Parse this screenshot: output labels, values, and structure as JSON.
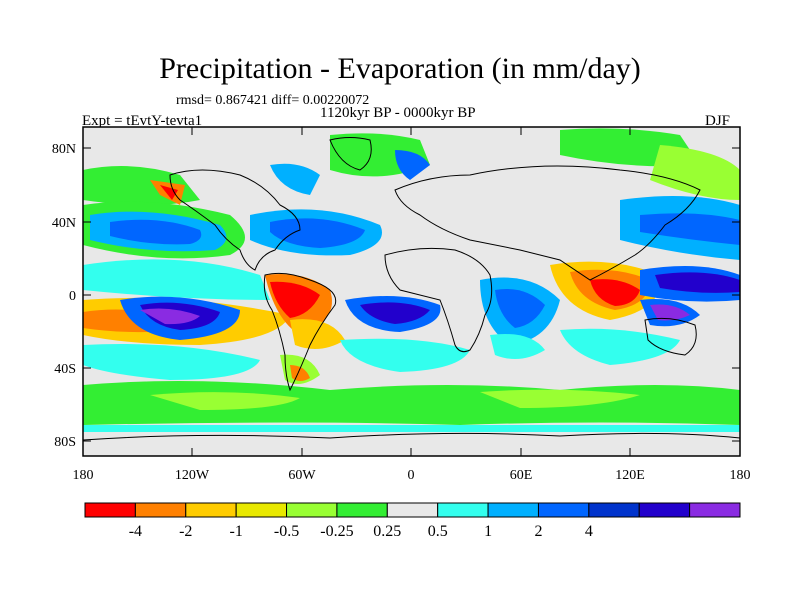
{
  "title": "Precipitation - Evaporation (in mm/day)",
  "stats": "rmsd= 0.867421 diff= 0.00220072",
  "period": "1120kyr BP - 0000kyr BP",
  "experiment": "Expt = tEvtY-tevta1",
  "season": "DJF",
  "axes": {
    "lat_ticks": [
      "80N",
      "40N",
      "0",
      "40S",
      "80S"
    ],
    "lon_ticks": [
      "180",
      "120W",
      "60W",
      "0",
      "60E",
      "120E",
      "180"
    ]
  },
  "colorbar": {
    "colors": [
      "#ff0000",
      "#ff8000",
      "#ffcc00",
      "#e8e800",
      "#99ff33",
      "#33ee33",
      "#e8e8e8",
      "#33ffee",
      "#00b0ff",
      "#0066ff",
      "#0033cc",
      "#2200cc",
      "#8a2be2"
    ],
    "labels": [
      "-4",
      "-2",
      "-1",
      "-0.5",
      "-0.25",
      "0.25",
      "0.5",
      "1",
      "2",
      "4"
    ]
  }
}
